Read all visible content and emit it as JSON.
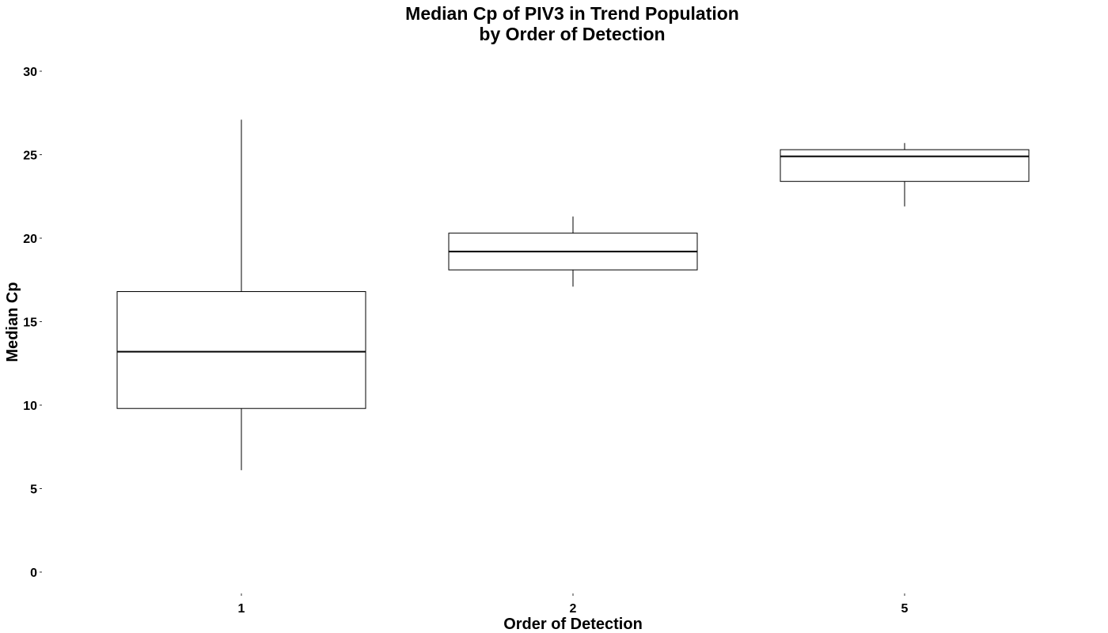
{
  "chart_data": {
    "type": "boxplot",
    "title": [
      "Median Cp of PIV3 in Trend Population",
      "by Order of Detection"
    ],
    "xlabel": "Order of Detection",
    "ylabel": "Median Cp",
    "categories": [
      "1",
      "2",
      "5"
    ],
    "ylim": [
      0,
      30
    ],
    "yticks": [
      0,
      5,
      10,
      15,
      20,
      25,
      30
    ],
    "grid": false,
    "boxes": [
      {
        "category": "1",
        "min": 6.1,
        "q1": 9.8,
        "median": 13.2,
        "q3": 16.8,
        "max": 27.1
      },
      {
        "category": "2",
        "min": 17.1,
        "q1": 18.1,
        "median": 19.2,
        "q3": 20.3,
        "max": 21.3
      },
      {
        "category": "5",
        "min": 21.9,
        "q1": 23.4,
        "median": 24.9,
        "q3": 25.3,
        "max": 25.7
      }
    ],
    "colors": {
      "stroke": "#000000",
      "fill": "#ffffff"
    }
  }
}
